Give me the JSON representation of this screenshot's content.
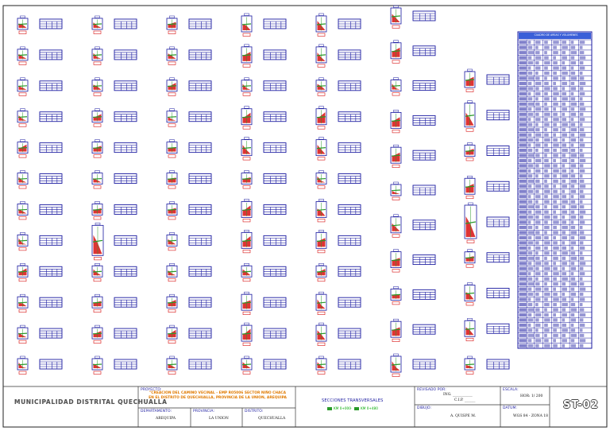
{
  "title_block": {
    "organization": "MUNICIPALIDAD DISTRITAL QUECHUALLA",
    "project_label": "PROYECTO:",
    "project_line1": "\"CREACION DEL CAMINO VECINAL - EMP R05006 SECTOR NIÑO CHACA",
    "project_line2": "EN EL DISTRITO DE QUECHUALLA, PROVINCIA DE LA UNION, AREQUIPA",
    "departamento_label": "DEPARTAMENTO:",
    "departamento": "AREQUIPA",
    "provincia_label": "PROVINCIA:",
    "provincia": "LA UNION",
    "distrito_label": "DISTRITO:",
    "distrito": "QUECHUALLA",
    "sheet_title": "SECCIONES TRANSVERSALES",
    "legend_1": "KM 0+000",
    "legend_2": "KM 0+480",
    "revisado_label": "REVISADO POR:",
    "revisado_sig": "ING. ___________",
    "revisado_cip": "C.I.P. ______",
    "dibujo_label": "DIBUJO:",
    "dibujo": "A. QUISPE M.",
    "escala_label": "ESCALA:",
    "escala": "HOR: 1/ 200",
    "fecha_label": "DATUM:",
    "fecha": "WGS 84 - ZONA 18",
    "sheet_code": "ST-02"
  },
  "volume_table": {
    "title": "CUADRO DE AREAS Y VOLUMENES",
    "rows": 60
  },
  "drawing": {
    "columns": 7,
    "section_color": "#d81010",
    "frame_color": "#1a1aa0",
    "fill_color": "#2a9a2a"
  }
}
